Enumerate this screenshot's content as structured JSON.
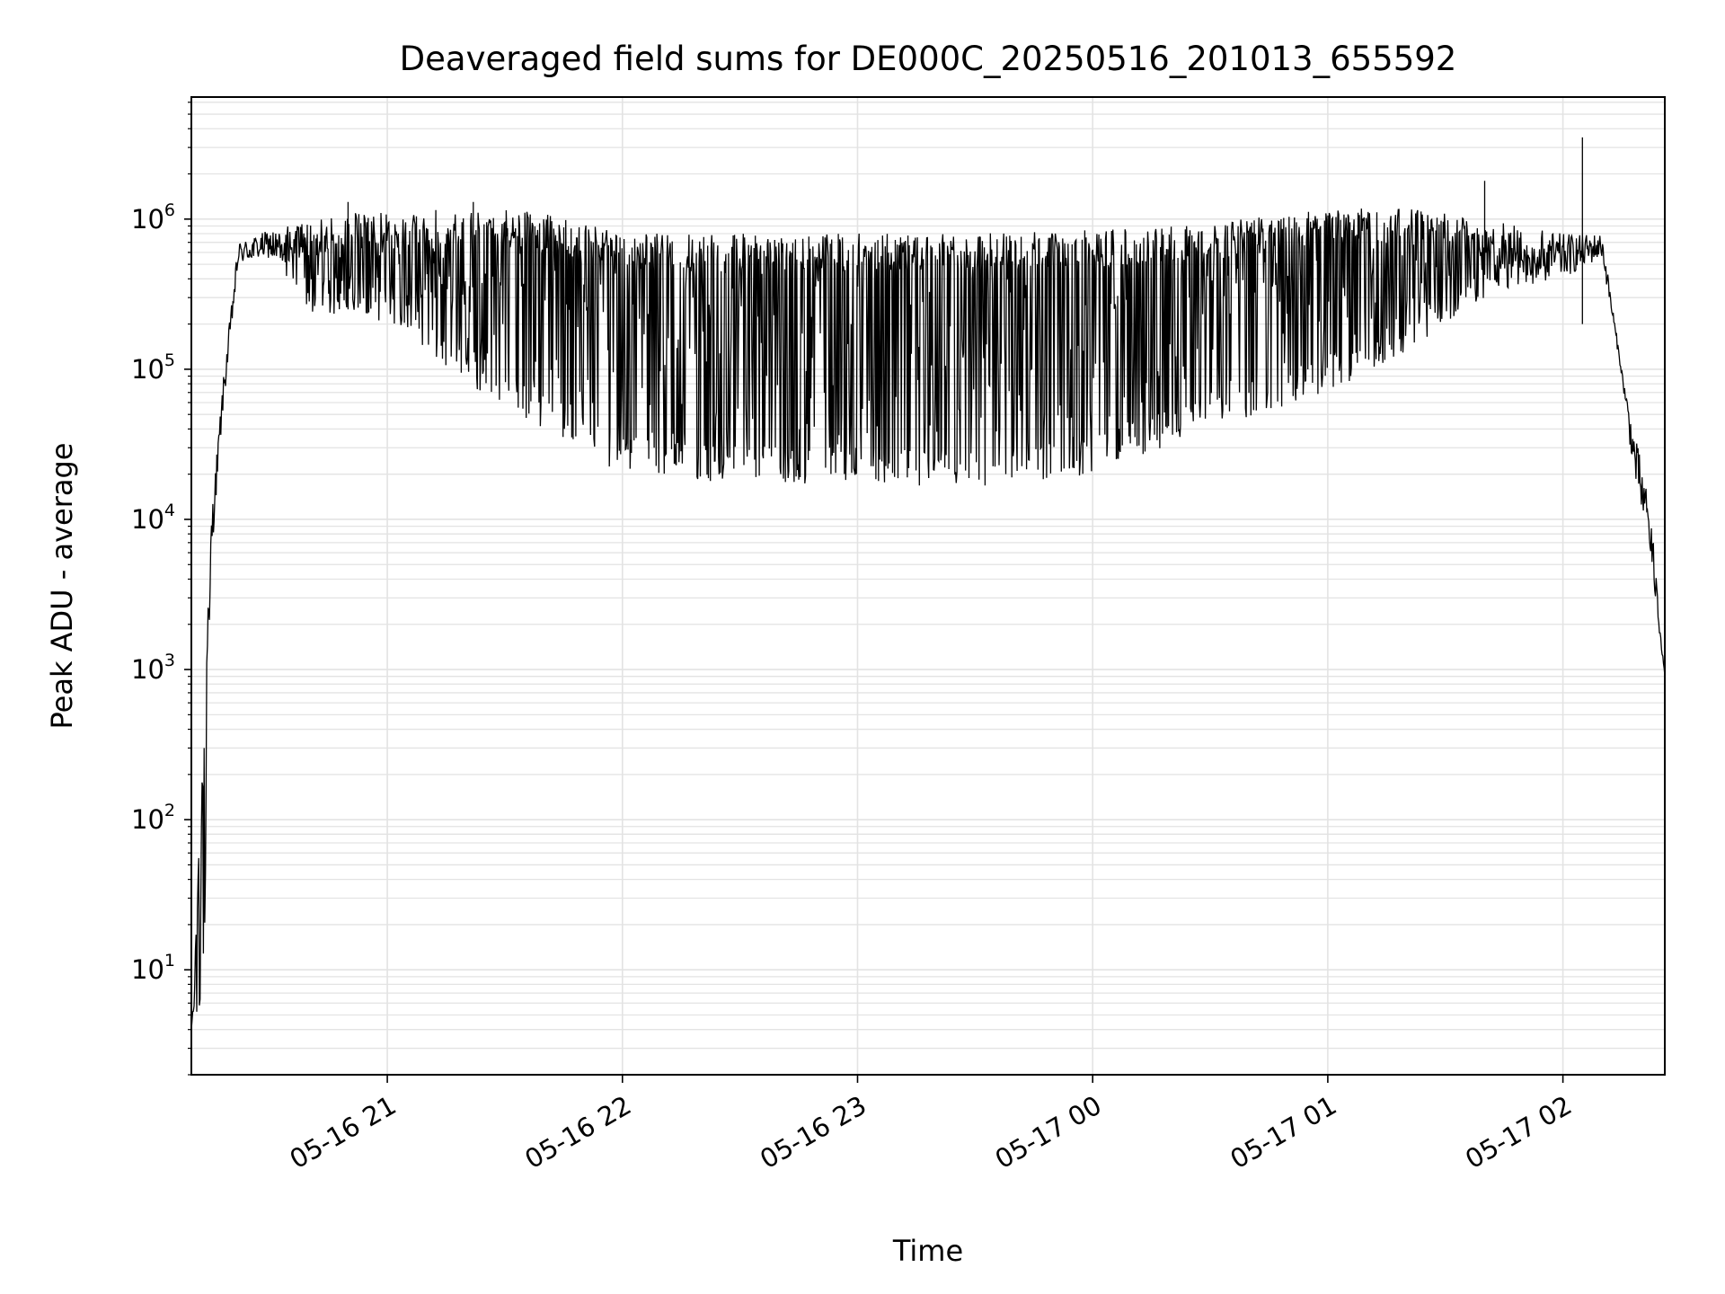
{
  "chart_data": {
    "type": "line",
    "title": "Deaveraged field sums for DE000C_20250516_201013_655592",
    "xlabel": "Time",
    "ylabel": "Peak ADU - average",
    "x_axis": {
      "kind": "datetime",
      "range": [
        "2025-05-16 20:10",
        "2025-05-17 02:26"
      ],
      "ticks": [
        "05-16 21",
        "05-16 22",
        "05-16 23",
        "05-17 00",
        "05-17 01",
        "05-17 02"
      ],
      "tick_times": [
        "2025-05-16 21:00",
        "2025-05-16 22:00",
        "2025-05-16 23:00",
        "2025-05-17 00:00",
        "2025-05-17 01:00",
        "2025-05-17 02:00"
      ]
    },
    "y_axis": {
      "scale": "log",
      "range": [
        2,
        6500000
      ],
      "ticks": [
        {
          "base": "10",
          "exp": "1",
          "value": 10
        },
        {
          "base": "10",
          "exp": "2",
          "value": 100
        },
        {
          "base": "10",
          "exp": "3",
          "value": 1000
        },
        {
          "base": "10",
          "exp": "4",
          "value": 10000
        },
        {
          "base": "10",
          "exp": "5",
          "value": 100000
        },
        {
          "base": "10",
          "exp": "6",
          "value": 1000000
        }
      ]
    },
    "grid": true,
    "legend": "none",
    "series": [
      {
        "color": "#000000",
        "envelope": [
          {
            "t": "2025-05-16 20:10",
            "low": 4,
            "high": 4
          },
          {
            "t": "2025-05-16 20:13",
            "low": 4,
            "high": 300
          },
          {
            "t": "2025-05-16 20:15",
            "low": 5000,
            "high": 10000
          },
          {
            "t": "2025-05-16 20:18",
            "low": 50000,
            "high": 80000
          },
          {
            "t": "2025-05-16 20:22",
            "low": 500000,
            "high": 700000
          },
          {
            "t": "2025-05-16 20:30",
            "low": 550000,
            "high": 850000
          },
          {
            "t": "2025-05-16 20:40",
            "low": 200000,
            "high": 950000
          },
          {
            "t": "2025-05-16 20:50",
            "low": 250000,
            "high": 1100000
          },
          {
            "t": "2025-05-16 21:00",
            "low": 200000,
            "high": 1100000
          },
          {
            "t": "2025-05-16 21:20",
            "low": 80000,
            "high": 1200000
          },
          {
            "t": "2025-05-16 21:40",
            "low": 40000,
            "high": 1100000
          },
          {
            "t": "2025-05-16 22:00",
            "low": 20000,
            "high": 800000
          },
          {
            "t": "2025-05-16 22:30",
            "low": 17000,
            "high": 800000
          },
          {
            "t": "2025-05-16 23:00",
            "low": 17000,
            "high": 800000
          },
          {
            "t": "2025-05-16 23:30",
            "low": 16000,
            "high": 800000
          },
          {
            "t": "2025-05-17 00:00",
            "low": 20000,
            "high": 850000
          },
          {
            "t": "2025-05-17 00:30",
            "low": 40000,
            "high": 950000
          },
          {
            "t": "2025-05-17 01:00",
            "low": 70000,
            "high": 1200000
          },
          {
            "t": "2025-05-17 01:20",
            "low": 130000,
            "high": 1200000
          },
          {
            "t": "2025-05-17 01:40",
            "low": 300000,
            "high": 1000000
          },
          {
            "t": "2025-05-17 02:00",
            "low": 400000,
            "high": 800000
          },
          {
            "t": "2025-05-17 02:10",
            "low": 550000,
            "high": 800000
          },
          {
            "t": "2025-05-17 02:15",
            "low": 90000,
            "high": 100000
          },
          {
            "t": "2025-05-17 02:18",
            "low": 20000,
            "high": 40000
          },
          {
            "t": "2025-05-17 02:22",
            "low": 6000,
            "high": 15000
          },
          {
            "t": "2025-05-17 02:26",
            "low": 900,
            "high": 900
          }
        ],
        "spikes": [
          {
            "t": "2025-05-16 20:50",
            "value": 1300000
          },
          {
            "t": "2025-05-16 21:22",
            "value": 1300000
          },
          {
            "t": "2025-05-17 01:40",
            "value": 1800000
          },
          {
            "t": "2025-05-17 02:05",
            "value": 3500000
          },
          {
            "t": "2025-05-17 02:05",
            "value": 200000
          }
        ]
      }
    ]
  }
}
